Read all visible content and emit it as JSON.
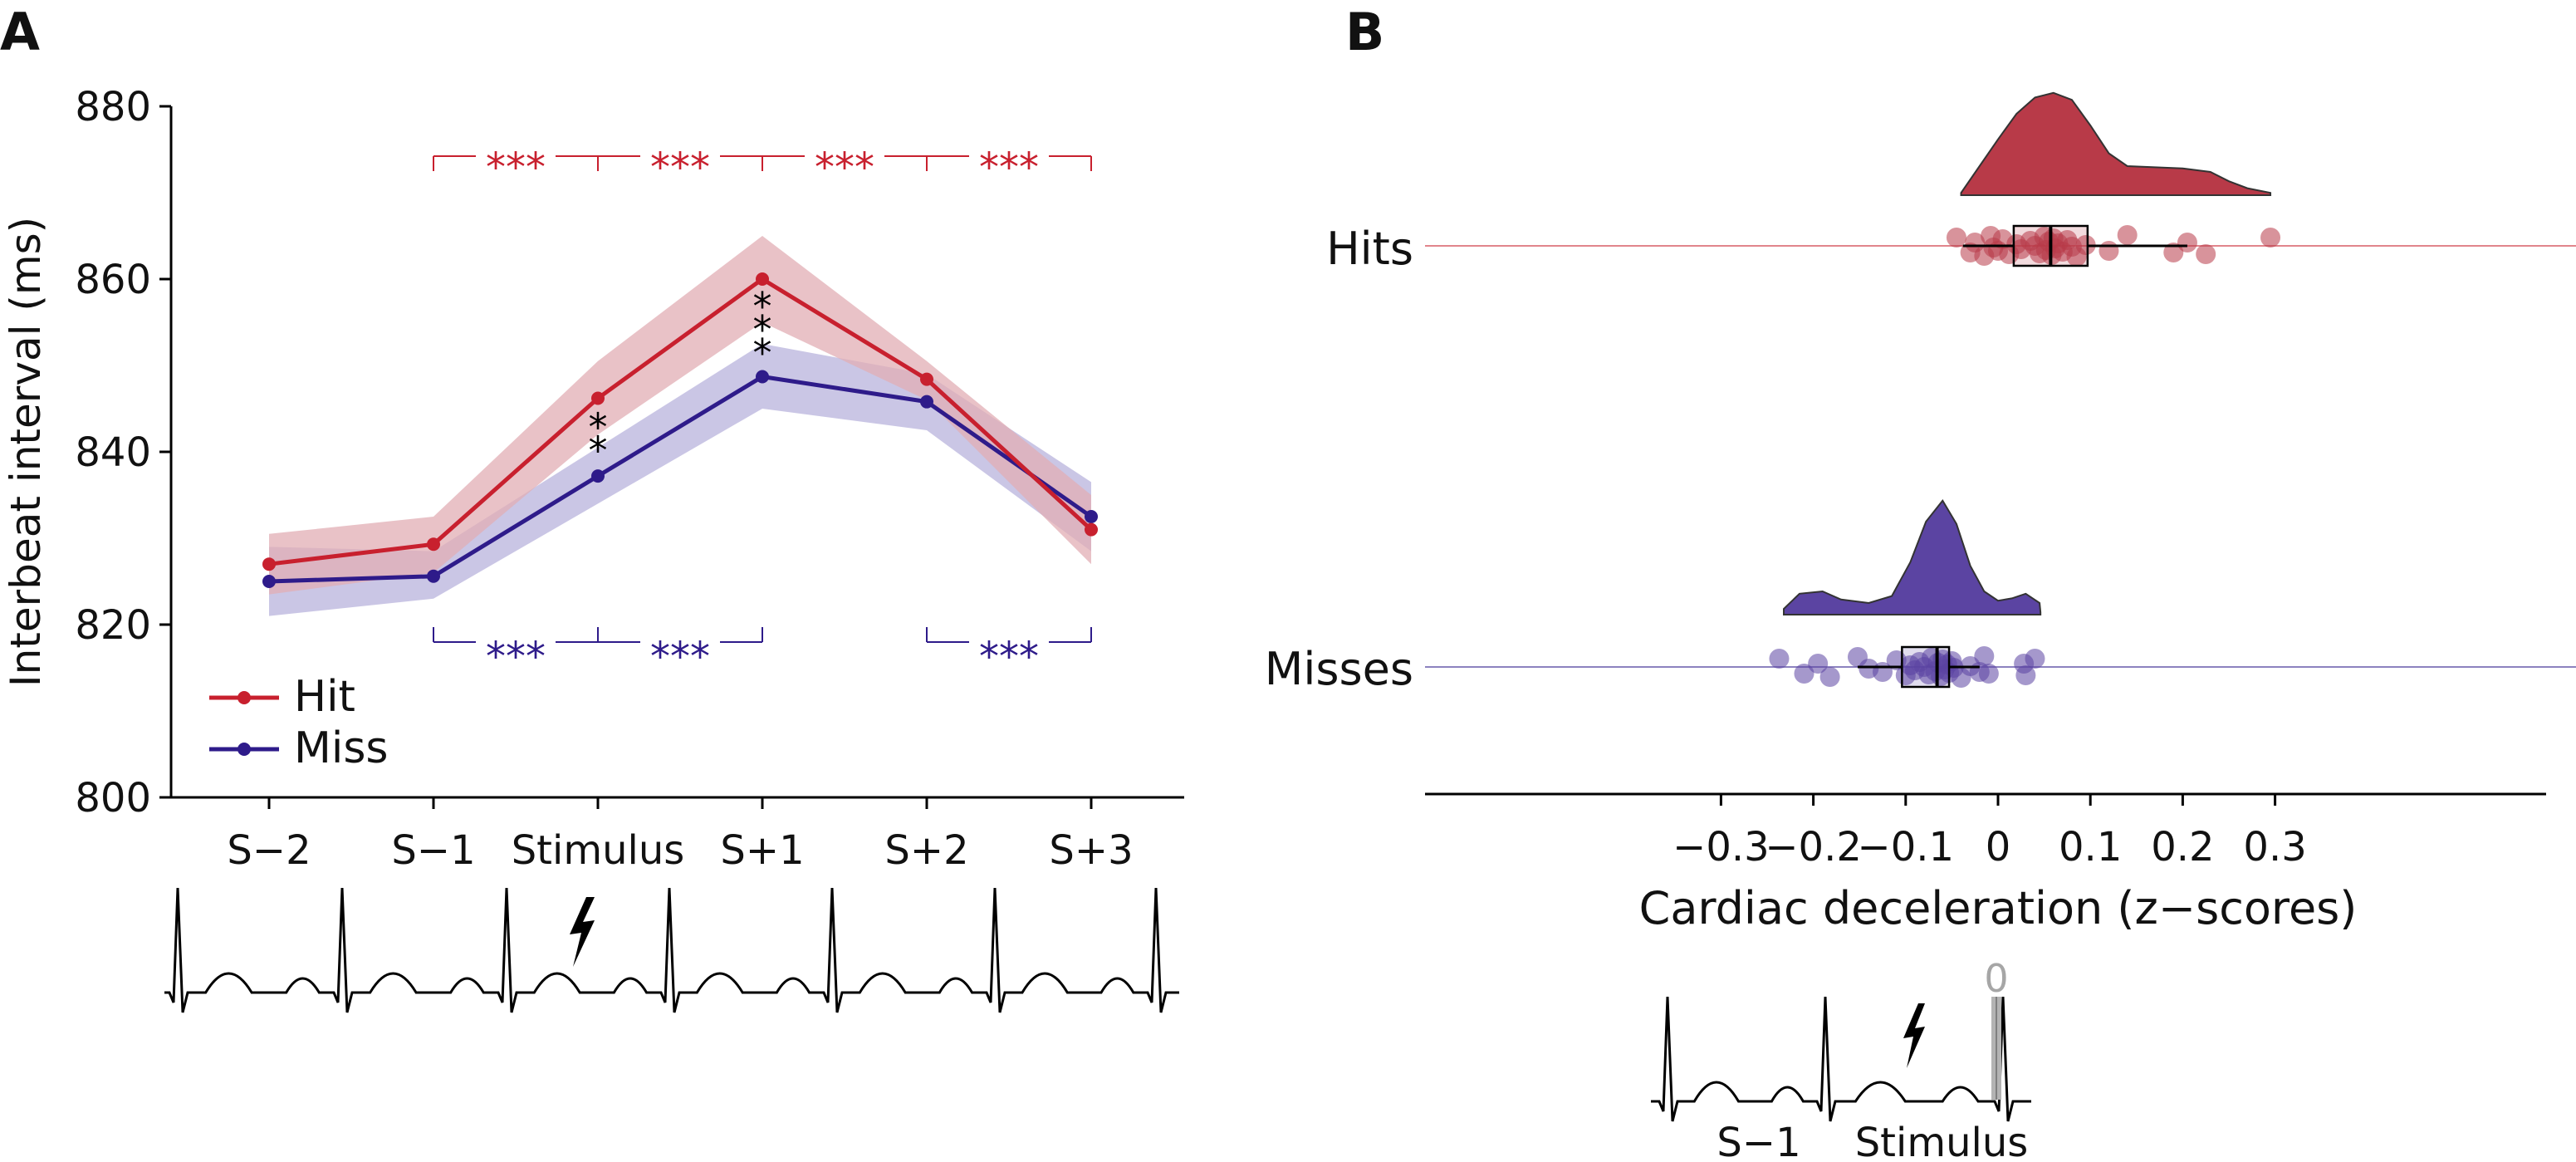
{
  "chart_data": [
    {
      "panel": "A",
      "type": "line",
      "categories": [
        "S−2",
        "S−1",
        "Stimulus",
        "S+1",
        "S+2",
        "S+3"
      ],
      "ylabel": "Interbeat interval (ms)",
      "ylim": [
        800,
        880
      ],
      "yticks": [
        "800",
        "820",
        "840",
        "860",
        "880"
      ],
      "legend": "bottom-left",
      "series": [
        {
          "name": "Hit",
          "color": "#c8202e",
          "band_color": "#e2aeb4",
          "values": [
            827,
            829.3,
            846.2,
            860,
            848.4,
            831
          ],
          "ci_low": [
            823.5,
            826,
            842,
            855,
            846,
            827
          ],
          "ci_high": [
            830.5,
            832.5,
            850.5,
            865,
            850.5,
            835
          ]
        },
        {
          "name": "Miss",
          "color": "#2e1b8a",
          "band_color": "#b8b3dc",
          "values": [
            825,
            825.6,
            837.2,
            848.7,
            845.8,
            832.5
          ],
          "ci_low": [
            821,
            823,
            834,
            845,
            842.5,
            828.5
          ],
          "ci_high": [
            829,
            828.5,
            840.5,
            852.5,
            849,
            836.5
          ]
        }
      ],
      "sig_top": {
        "label": "***",
        "color": "#c8202e",
        "segments": [
          [
            1,
            2
          ],
          [
            2,
            3
          ],
          [
            3,
            4
          ],
          [
            4,
            5
          ]
        ]
      },
      "sig_bottom": {
        "label": "***",
        "color": "#2e1b8a",
        "segments": [
          [
            1,
            2
          ],
          [
            2,
            3
          ],
          [
            4,
            5
          ]
        ]
      },
      "sig_vertical": [
        {
          "index": 2,
          "label": "**"
        },
        {
          "index": 3,
          "label": "***"
        }
      ],
      "ecg_labels": []
    },
    {
      "panel": "B",
      "type": "scatter",
      "xlabel": "Cardiac deceleration (z−scores)",
      "xlim": [
        -0.32,
        0.32
      ],
      "xticks": [
        "−0.3",
        "−0.2",
        "−0.1",
        "0",
        "0.1",
        "0.2",
        "0.3"
      ],
      "categories": [
        "Hits",
        "Misses"
      ],
      "groups": [
        {
          "name": "Hits",
          "color": "#c8202e",
          "fill": "#b83a48",
          "box": {
            "q1": 0.017,
            "median": 0.057,
            "q3": 0.097,
            "whisker_low": -0.038,
            "whisker_high": 0.205
          },
          "points": [
            -0.045,
            -0.03,
            -0.025,
            -0.015,
            -0.008,
            -0.005,
            0.0,
            0.005,
            0.012,
            0.02,
            0.025,
            0.035,
            0.04,
            0.045,
            0.05,
            0.052,
            0.055,
            0.058,
            0.06,
            0.062,
            0.065,
            0.07,
            0.075,
            0.08,
            0.085,
            0.095,
            0.12,
            0.14,
            0.19,
            0.205,
            0.225,
            0.295
          ],
          "density": [
            [
              -0.04,
              0.02
            ],
            [
              -0.02,
              0.25
            ],
            [
              0.0,
              0.48
            ],
            [
              0.02,
              0.7
            ],
            [
              0.04,
              0.84
            ],
            [
              0.06,
              0.88
            ],
            [
              0.08,
              0.82
            ],
            [
              0.1,
              0.6
            ],
            [
              0.12,
              0.36
            ],
            [
              0.14,
              0.25
            ],
            [
              0.17,
              0.24
            ],
            [
              0.2,
              0.23
            ],
            [
              0.23,
              0.2
            ],
            [
              0.25,
              0.12
            ],
            [
              0.27,
              0.06
            ],
            [
              0.295,
              0.02
            ]
          ]
        },
        {
          "name": "Misses",
          "color": "#2e1b8a",
          "fill": "#5b44a2",
          "box": {
            "q1": -0.104,
            "median": -0.066,
            "q3": -0.053,
            "whisker_low": -0.152,
            "whisker_high": -0.02
          },
          "points": [
            -0.237,
            -0.21,
            -0.195,
            -0.182,
            -0.152,
            -0.14,
            -0.125,
            -0.11,
            -0.1,
            -0.095,
            -0.09,
            -0.085,
            -0.08,
            -0.075,
            -0.072,
            -0.068,
            -0.065,
            -0.062,
            -0.06,
            -0.058,
            -0.055,
            -0.053,
            -0.05,
            -0.048,
            -0.04,
            -0.03,
            -0.02,
            -0.015,
            -0.01,
            0.028,
            0.03,
            0.04
          ],
          "density": [
            [
              -0.232,
              0.05
            ],
            [
              -0.215,
              0.18
            ],
            [
              -0.19,
              0.2
            ],
            [
              -0.17,
              0.13
            ],
            [
              -0.14,
              0.1
            ],
            [
              -0.115,
              0.16
            ],
            [
              -0.095,
              0.45
            ],
            [
              -0.078,
              0.8
            ],
            [
              -0.06,
              0.98
            ],
            [
              -0.045,
              0.78
            ],
            [
              -0.03,
              0.42
            ],
            [
              -0.015,
              0.2
            ],
            [
              0.0,
              0.12
            ],
            [
              0.015,
              0.14
            ],
            [
              0.03,
              0.18
            ],
            [
              0.045,
              0.1
            ],
            [
              0.046,
              0.02
            ]
          ]
        }
      ],
      "ecg_labels": [
        "S−1",
        "Stimulus"
      ],
      "zero_label": "0"
    }
  ],
  "panel_labels": [
    "A",
    "B"
  ]
}
